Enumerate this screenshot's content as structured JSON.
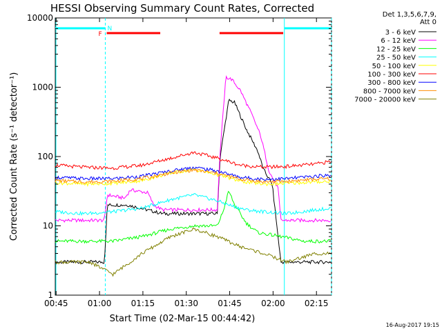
{
  "chart_data": {
    "type": "line",
    "title": "HESSI Observing Summary Count Rates, Corrected",
    "xlabel": "Start Time (02-Mar-15 00:44:42)",
    "ylabel": "Corrected Count Rate (s⁻¹ detector⁻¹)",
    "x_unit": "minutes since 00:44:42",
    "xlim": [
      0,
      95.5
    ],
    "ylim": [
      1,
      10000
    ],
    "y_scale": "log",
    "x_ticks": [
      {
        "label": "00:45",
        "value": 0.3
      },
      {
        "label": "01:00",
        "value": 15.3
      },
      {
        "label": "01:15",
        "value": 30.3
      },
      {
        "label": "01:30",
        "value": 45.3
      },
      {
        "label": "01:45",
        "value": 60.3
      },
      {
        "label": "02:00",
        "value": 75.3
      },
      {
        "label": "02:15",
        "value": 90.3
      }
    ],
    "y_ticks": [
      {
        "label": "1",
        "value": 1
      },
      {
        "label": "10",
        "value": 10
      },
      {
        "label": "100",
        "value": 100
      },
      {
        "label": "1000",
        "value": 1000
      },
      {
        "label": "10000",
        "value": 10000
      }
    ],
    "legend_header": [
      "Det 1,3,5,6,7,9,",
      "Att 0"
    ],
    "legend_position": "right",
    "series": [
      {
        "name": "3 - 6 keV",
        "color": "#000000",
        "points": [
          [
            0,
            3
          ],
          [
            17,
            3
          ],
          [
            18,
            20
          ],
          [
            25,
            20
          ],
          [
            37,
            15
          ],
          [
            56,
            15
          ],
          [
            57,
            100
          ],
          [
            60,
            650
          ],
          [
            62,
            600
          ],
          [
            66,
            250
          ],
          [
            70,
            120
          ],
          [
            72,
            65
          ],
          [
            75,
            40
          ],
          [
            78,
            3
          ],
          [
            95.5,
            3
          ]
        ]
      },
      {
        "name": "6 - 12 keV",
        "color": "#ff00ff",
        "points": [
          [
            0,
            12
          ],
          [
            17,
            12
          ],
          [
            18,
            28
          ],
          [
            24,
            25
          ],
          [
            26,
            33
          ],
          [
            32,
            30
          ],
          [
            34,
            20
          ],
          [
            37,
            17
          ],
          [
            56,
            17
          ],
          [
            57,
            120
          ],
          [
            59,
            1400
          ],
          [
            61,
            1300
          ],
          [
            64,
            900
          ],
          [
            68,
            400
          ],
          [
            71,
            200
          ],
          [
            74,
            60
          ],
          [
            77,
            35
          ],
          [
            78,
            12
          ],
          [
            95.5,
            12
          ]
        ]
      },
      {
        "name": "12 - 25 keV",
        "color": "#00ff00",
        "points": [
          [
            0,
            6
          ],
          [
            20,
            6
          ],
          [
            30,
            7
          ],
          [
            40,
            9
          ],
          [
            48,
            10
          ],
          [
            56,
            10
          ],
          [
            58,
            16
          ],
          [
            60,
            32
          ],
          [
            62,
            20
          ],
          [
            66,
            11
          ],
          [
            70,
            8
          ],
          [
            78,
            7
          ],
          [
            86,
            6
          ],
          [
            95.5,
            6
          ]
        ]
      },
      {
        "name": "25 - 50 keV",
        "color": "#00ffff",
        "points": [
          [
            0,
            16
          ],
          [
            10,
            15
          ],
          [
            20,
            16
          ],
          [
            30,
            18
          ],
          [
            40,
            24
          ],
          [
            48,
            28
          ],
          [
            56,
            23
          ],
          [
            60,
            20
          ],
          [
            66,
            17
          ],
          [
            72,
            16
          ],
          [
            80,
            15
          ],
          [
            90,
            17
          ],
          [
            95.5,
            18
          ]
        ]
      },
      {
        "name": "50 - 100 keV",
        "color": "#ffff00",
        "points": [
          [
            0,
            42
          ],
          [
            10,
            40
          ],
          [
            20,
            41
          ],
          [
            30,
            45
          ],
          [
            40,
            58
          ],
          [
            48,
            65
          ],
          [
            56,
            55
          ],
          [
            64,
            44
          ],
          [
            72,
            40
          ],
          [
            80,
            41
          ],
          [
            90,
            43
          ],
          [
            95.5,
            44
          ]
        ]
      },
      {
        "name": "100 - 300 keV",
        "color": "#ff0000",
        "points": [
          [
            0,
            75
          ],
          [
            10,
            70
          ],
          [
            20,
            68
          ],
          [
            30,
            75
          ],
          [
            40,
            95
          ],
          [
            48,
            115
          ],
          [
            56,
            95
          ],
          [
            64,
            75
          ],
          [
            72,
            70
          ],
          [
            80,
            72
          ],
          [
            90,
            78
          ],
          [
            95.5,
            85
          ]
        ]
      },
      {
        "name": "300 - 800 keV",
        "color": "#0000ff",
        "points": [
          [
            0,
            50
          ],
          [
            10,
            48
          ],
          [
            20,
            48
          ],
          [
            30,
            52
          ],
          [
            40,
            62
          ],
          [
            48,
            70
          ],
          [
            56,
            62
          ],
          [
            64,
            50
          ],
          [
            72,
            47
          ],
          [
            80,
            48
          ],
          [
            90,
            52
          ],
          [
            95.5,
            54
          ]
        ]
      },
      {
        "name": "800 - 7000 keV",
        "color": "#ff8c00",
        "points": [
          [
            0,
            45
          ],
          [
            10,
            43
          ],
          [
            20,
            44
          ],
          [
            30,
            48
          ],
          [
            40,
            58
          ],
          [
            48,
            64
          ],
          [
            56,
            57
          ],
          [
            64,
            47
          ],
          [
            72,
            43
          ],
          [
            80,
            44
          ],
          [
            90,
            47
          ],
          [
            95.5,
            48
          ]
        ]
      },
      {
        "name": "7000 - 20000 keV",
        "color": "#808000",
        "points": [
          [
            0,
            3
          ],
          [
            12,
            3
          ],
          [
            20,
            2
          ],
          [
            30,
            4
          ],
          [
            40,
            7
          ],
          [
            48,
            9
          ],
          [
            56,
            7
          ],
          [
            64,
            5
          ],
          [
            72,
            4
          ],
          [
            80,
            3
          ],
          [
            90,
            4
          ],
          [
            95.5,
            4
          ]
        ]
      }
    ],
    "annotations": {
      "night_label": "N",
      "flare_label": "F",
      "night_intervals": [
        [
          0,
          17.3
        ],
        [
          79.2,
          95.5
        ]
      ],
      "flare_intervals": [
        [
          17.8,
          36.3
        ],
        [
          56.8,
          78.8
        ]
      ],
      "night_color": "#00ffff",
      "flare_color": "#ff0000"
    }
  },
  "footer": {
    "timestamp": "16-Aug-2017 19:15"
  }
}
